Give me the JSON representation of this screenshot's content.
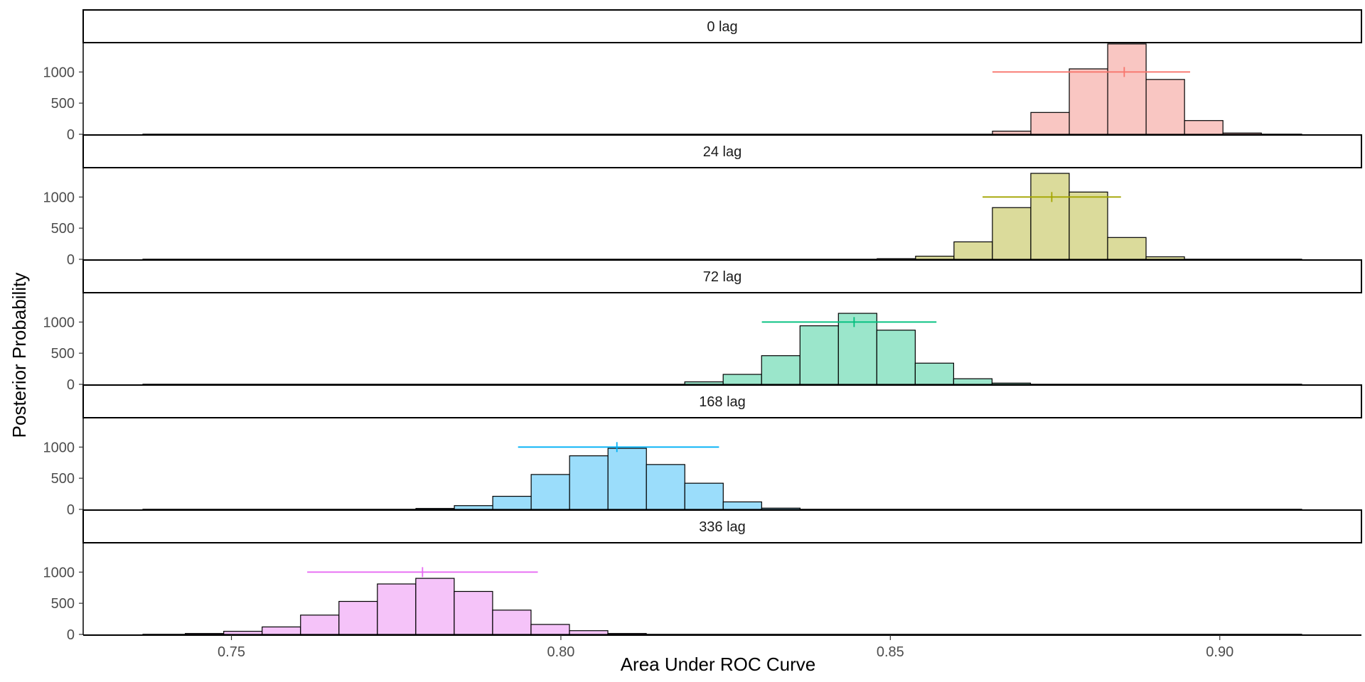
{
  "chart_data": {
    "type": "bar",
    "chart_kind": "faceted-histogram",
    "xlabel": "Area Under ROC Curve",
    "ylabel": "Posterior Probability",
    "xlim": [
      0.7275,
      0.9215
    ],
    "ylim": [
      0,
      1460
    ],
    "x_ticks": [
      0.75,
      0.8,
      0.85,
      0.9
    ],
    "x_tick_labels": [
      "0.75",
      "0.80",
      "0.85",
      "0.90"
    ],
    "y_ticks": [
      0,
      500,
      1000
    ],
    "y_tick_labels": [
      "0",
      "500",
      "1000"
    ],
    "bin_width": 0.00583,
    "baseline_range": [
      0.7365,
      0.9125
    ],
    "grid": false,
    "legend": "none",
    "panels": [
      {
        "name": "0 lag",
        "color": "#F8766D",
        "fill": "#F9C6C2",
        "bin_start": 0.8655,
        "counts": [
          50,
          350,
          1050,
          1450,
          880,
          220,
          20
        ],
        "interval": [
          0.8655,
          0.8955
        ],
        "interval_y": 1000,
        "point": 0.8855
      },
      {
        "name": "24 lag",
        "color": "#A3A500",
        "fill": "#DBDB9B",
        "bin_start": 0.848,
        "counts": [
          10,
          50,
          280,
          830,
          1380,
          1080,
          350,
          40
        ],
        "interval": [
          0.864,
          0.885
        ],
        "interval_y": 1000,
        "point": 0.8745
      },
      {
        "name": "72 lag",
        "color": "#00BF7D",
        "fill": "#9BE6CB",
        "bin_start": 0.8188,
        "counts": [
          40,
          160,
          460,
          940,
          1140,
          870,
          340,
          90,
          20
        ],
        "interval": [
          0.8305,
          0.857
        ],
        "interval_y": 1000,
        "point": 0.8445
      },
      {
        "name": "168 lag",
        "color": "#00B0F6",
        "fill": "#9BDDFB",
        "bin_start": 0.778,
        "counts": [
          15,
          60,
          210,
          560,
          860,
          980,
          720,
          420,
          120,
          20
        ],
        "interval": [
          0.7935,
          0.824
        ],
        "interval_y": 1000,
        "point": 0.8085
      },
      {
        "name": "336 lag",
        "color": "#E76BF3",
        "fill": "#F5C3F9",
        "bin_start": 0.743,
        "counts": [
          15,
          50,
          120,
          310,
          530,
          810,
          900,
          690,
          390,
          160,
          60,
          15
        ],
        "interval": [
          0.7615,
          0.7965
        ],
        "interval_y": 1000,
        "point": 0.779
      }
    ]
  }
}
